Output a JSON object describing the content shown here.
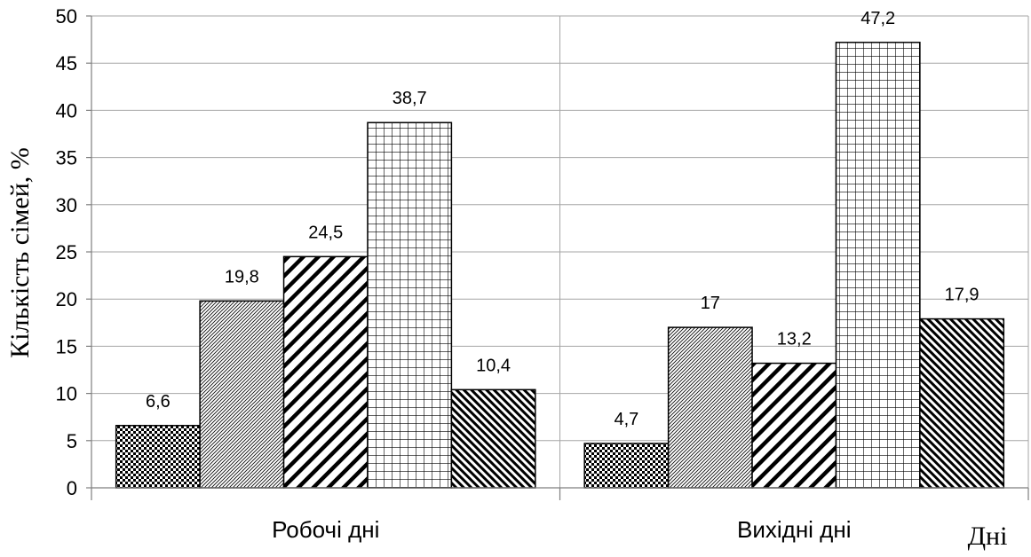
{
  "chart_data": {
    "type": "bar",
    "categories": [
      "Робочі дні",
      "Вихідні дні"
    ],
    "series": [
      {
        "values": [
          6.6,
          4.7
        ],
        "pattern": "checker"
      },
      {
        "values": [
          19.8,
          17
        ],
        "pattern": "fine-diagonal"
      },
      {
        "values": [
          24.5,
          13.2
        ],
        "pattern": "wide-diagonal"
      },
      {
        "values": [
          38.7,
          47.2
        ],
        "pattern": "grid"
      },
      {
        "values": [
          10.4,
          17.9
        ],
        "pattern": "dense-diagonal"
      }
    ],
    "data_labels": [
      [
        "6,6",
        "4,7"
      ],
      [
        "19,8",
        "17"
      ],
      [
        "24,5",
        "13,2"
      ],
      [
        "38,7",
        "47,2"
      ],
      [
        "10,4",
        "17,9"
      ]
    ],
    "yticks": [
      "0",
      "5",
      "10",
      "15",
      "20",
      "25",
      "30",
      "35",
      "40",
      "45",
      "50"
    ],
    "ylim": [
      0,
      50
    ],
    "ylabel": "Кількість сімей, %",
    "xlabel": "Дні",
    "grid": true,
    "legend": "none"
  }
}
